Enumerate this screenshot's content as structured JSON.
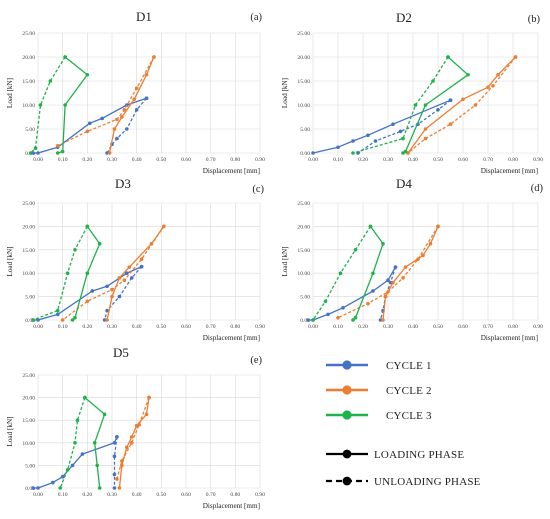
{
  "chart_data": [
    {
      "type": "line",
      "title": "D1",
      "panel_letter": "(a)",
      "xlabel": "Displacement [mm]",
      "ylabel": "Load [kN]",
      "xlim": [
        0,
        0.9
      ],
      "ylim": [
        0,
        25
      ],
      "xticks": [
        "0.00",
        "0.10",
        "0.20",
        "0.30",
        "0.40",
        "0.50",
        "0.60",
        "0.70",
        "0.80",
        "0.90"
      ],
      "yticks": [
        "0.00",
        "5.00",
        "10.00",
        "15.00",
        "20.00",
        "25.00"
      ],
      "grid": true,
      "series": [
        {
          "cycle": 1,
          "phase": "loading",
          "x": [
            -0.02,
            0.0,
            0.08,
            0.21,
            0.26,
            0.36,
            0.44
          ],
          "y": [
            0.0,
            0.0,
            1.2,
            6.2,
            7.2,
            10.0,
            11.4
          ]
        },
        {
          "cycle": 1,
          "phase": "unloading",
          "x": [
            0.44,
            0.4,
            0.36,
            0.32,
            0.3,
            0.28
          ],
          "y": [
            11.4,
            9.0,
            5.0,
            3.0,
            1.8,
            0.0
          ]
        },
        {
          "cycle": 2,
          "phase": "loading",
          "x": [
            0.29,
            0.31,
            0.34,
            0.39,
            0.44,
            0.47
          ],
          "y": [
            0.0,
            5.0,
            7.5,
            11.2,
            16.3,
            20.0
          ]
        },
        {
          "cycle": 2,
          "phase": "unloading",
          "x": [
            0.47,
            0.4,
            0.35,
            0.32,
            0.2,
            0.08
          ],
          "y": [
            20.0,
            13.5,
            9.0,
            7.0,
            4.5,
            1.5
          ]
        },
        {
          "cycle": 3,
          "phase": "loading",
          "x": [
            0.08,
            0.1,
            0.11,
            0.2,
            0.11
          ],
          "y": [
            0.0,
            0.3,
            10.0,
            16.3,
            20.0
          ]
        },
        {
          "cycle": 3,
          "phase": "unloading",
          "x": [
            0.11,
            0.05,
            0.01,
            -0.01,
            -0.03
          ],
          "y": [
            20.0,
            15.0,
            10.0,
            1.0,
            0.0
          ]
        }
      ]
    },
    {
      "type": "line",
      "title": "D2",
      "panel_letter": "(b)",
      "xlabel": "Displacement [mm]",
      "ylabel": "Load [kN]",
      "xlim": [
        0,
        0.9
      ],
      "ylim": [
        0,
        25
      ],
      "xticks": [
        "0.00",
        "0.10",
        "0.20",
        "0.30",
        "0.40",
        "0.50",
        "0.60",
        "0.70",
        "0.80",
        "0.90"
      ],
      "yticks": [
        "0.00",
        "5.00",
        "10.00",
        "15.00",
        "20.00",
        "25.00"
      ],
      "grid": true,
      "series": [
        {
          "cycle": 1,
          "phase": "loading",
          "x": [
            0.0,
            0.1,
            0.16,
            0.22,
            0.32,
            0.55
          ],
          "y": [
            0.0,
            1.2,
            2.5,
            3.7,
            6.0,
            11.0
          ]
        },
        {
          "cycle": 1,
          "phase": "unloading",
          "x": [
            0.55,
            0.5,
            0.42,
            0.35,
            0.25,
            0.18
          ],
          "y": [
            11.0,
            9.0,
            6.0,
            4.5,
            2.5,
            0.0
          ]
        },
        {
          "cycle": 2,
          "phase": "loading",
          "x": [
            0.38,
            0.45,
            0.6,
            0.7,
            0.74,
            0.81
          ],
          "y": [
            0.0,
            5.0,
            11.2,
            13.7,
            16.3,
            20.0
          ]
        },
        {
          "cycle": 2,
          "phase": "unloading",
          "x": [
            0.81,
            0.72,
            0.65,
            0.55,
            0.45,
            0.38
          ],
          "y": [
            20.0,
            14.0,
            10.0,
            6.0,
            3.0,
            0.0
          ]
        },
        {
          "cycle": 3,
          "phase": "loading",
          "x": [
            0.36,
            0.37,
            0.45,
            0.62,
            0.54
          ],
          "y": [
            0.0,
            0.3,
            10.0,
            16.3,
            20.0
          ]
        },
        {
          "cycle": 3,
          "phase": "unloading",
          "x": [
            0.54,
            0.48,
            0.41,
            0.36,
            0.16
          ],
          "y": [
            20.0,
            15.0,
            10.0,
            3.0,
            0.0
          ]
        }
      ]
    },
    {
      "type": "line",
      "title": "D3",
      "panel_letter": "(c)",
      "xlabel": "Displacement [mm]",
      "ylabel": "Load [kN]",
      "xlim": [
        0,
        0.9
      ],
      "ylim": [
        0,
        25
      ],
      "xticks": [
        "0.00",
        "0.10",
        "0.20",
        "0.30",
        "0.40",
        "0.50",
        "0.60",
        "0.70",
        "0.80",
        "0.90"
      ],
      "yticks": [
        "0.00",
        "5.00",
        "10.00",
        "15.00",
        "20.00",
        "25.00"
      ],
      "grid": true,
      "series": [
        {
          "cycle": 1,
          "phase": "loading",
          "x": [
            -0.02,
            0.0,
            0.08,
            0.22,
            0.28,
            0.36,
            0.42
          ],
          "y": [
            0.0,
            0.0,
            1.2,
            6.2,
            7.2,
            10.0,
            11.4
          ]
        },
        {
          "cycle": 1,
          "phase": "unloading",
          "x": [
            0.42,
            0.38,
            0.33,
            0.28,
            0.27
          ],
          "y": [
            11.4,
            9.0,
            5.0,
            2.0,
            0.0
          ]
        },
        {
          "cycle": 2,
          "phase": "loading",
          "x": [
            0.28,
            0.3,
            0.33,
            0.37,
            0.46,
            0.51
          ],
          "y": [
            0.0,
            5.0,
            9.0,
            11.3,
            16.3,
            20.0
          ]
        },
        {
          "cycle": 2,
          "phase": "unloading",
          "x": [
            0.51,
            0.42,
            0.35,
            0.3,
            0.2,
            0.1
          ],
          "y": [
            20.0,
            13.0,
            8.5,
            6.5,
            4.0,
            0.0
          ]
        },
        {
          "cycle": 3,
          "phase": "loading",
          "x": [
            0.14,
            0.15,
            0.2,
            0.25,
            0.2
          ],
          "y": [
            0.0,
            0.5,
            10.0,
            16.3,
            20.0
          ]
        },
        {
          "cycle": 3,
          "phase": "unloading",
          "x": [
            0.2,
            0.15,
            0.12,
            0.08,
            -0.02
          ],
          "y": [
            20.0,
            15.0,
            10.0,
            2.0,
            0.0
          ]
        }
      ]
    },
    {
      "type": "line",
      "title": "D4",
      "panel_letter": "(d)",
      "xlabel": "Displacement [mm]",
      "ylabel": "Load [kN]",
      "xlim": [
        0,
        0.9
      ],
      "ylim": [
        0,
        25
      ],
      "xticks": [
        "0.00",
        "0.10",
        "0.20",
        "0.30",
        "0.40",
        "0.50",
        "0.60",
        "0.70",
        "0.80",
        "0.90"
      ],
      "yticks": [
        "0.00",
        "5.00",
        "10.00",
        "15.00",
        "20.00",
        "25.00"
      ],
      "grid": true,
      "series": [
        {
          "cycle": 1,
          "phase": "loading",
          "x": [
            -0.02,
            0.0,
            0.06,
            0.12,
            0.24,
            0.3,
            0.33
          ],
          "y": [
            0.0,
            0.0,
            1.2,
            2.6,
            6.2,
            8.5,
            11.3
          ]
        },
        {
          "cycle": 1,
          "phase": "unloading",
          "x": [
            0.33,
            0.31,
            0.29,
            0.28,
            0.27
          ],
          "y": [
            11.3,
            8.0,
            5.0,
            2.0,
            0.0
          ]
        },
        {
          "cycle": 2,
          "phase": "loading",
          "x": [
            0.28,
            0.29,
            0.32,
            0.37,
            0.44,
            0.47,
            0.5
          ],
          "y": [
            0.0,
            5.0,
            8.0,
            11.3,
            13.8,
            16.3,
            20.0
          ]
        },
        {
          "cycle": 2,
          "phase": "unloading",
          "x": [
            0.5,
            0.42,
            0.36,
            0.3,
            0.22,
            0.1
          ],
          "y": [
            20.0,
            13.0,
            9.0,
            6.0,
            3.5,
            0.5
          ]
        },
        {
          "cycle": 3,
          "phase": "loading",
          "x": [
            0.16,
            0.17,
            0.24,
            0.28,
            0.23
          ],
          "y": [
            0.0,
            0.5,
            10.0,
            16.3,
            20.0
          ]
        },
        {
          "cycle": 3,
          "phase": "unloading",
          "x": [
            0.23,
            0.17,
            0.11,
            0.05,
            0.0
          ],
          "y": [
            20.0,
            15.0,
            10.0,
            4.0,
            0.0
          ]
        }
      ]
    },
    {
      "type": "line",
      "title": "D5",
      "panel_letter": "(e)",
      "xlabel": "Displacement [mm]",
      "ylabel": "Load [kN]",
      "xlim": [
        0,
        0.9
      ],
      "ylim": [
        0,
        25
      ],
      "xticks": [
        "0.00",
        "0.10",
        "0.20",
        "0.30",
        "0.40",
        "0.50",
        "0.60",
        "0.70",
        "0.80",
        "0.90"
      ],
      "yticks": [
        "0.00",
        "5.00",
        "10.00",
        "15.00",
        "20.00",
        "25.00"
      ],
      "grid": true,
      "series": [
        {
          "cycle": 1,
          "phase": "loading",
          "x": [
            -0.02,
            0.0,
            0.06,
            0.1,
            0.14,
            0.18,
            0.31,
            0.32
          ],
          "y": [
            0.0,
            0.0,
            1.2,
            2.5,
            5.0,
            7.5,
            10.0,
            11.3
          ]
        },
        {
          "cycle": 1,
          "phase": "unloading",
          "x": [
            0.32,
            0.31,
            0.31,
            0.31
          ],
          "y": [
            11.3,
            7.0,
            3.0,
            0.0
          ]
        },
        {
          "cycle": 2,
          "phase": "loading",
          "x": [
            0.33,
            0.34,
            0.36,
            0.38,
            0.4,
            0.44,
            0.45
          ],
          "y": [
            0.0,
            5.0,
            9.0,
            11.3,
            13.8,
            16.3,
            20.0
          ]
        },
        {
          "cycle": 2,
          "phase": "unloading",
          "x": [
            0.45,
            0.41,
            0.38,
            0.34,
            0.32
          ],
          "y": [
            20.0,
            14.0,
            10.0,
            6.0,
            2.0
          ]
        },
        {
          "cycle": 3,
          "phase": "loading",
          "x": [
            0.25,
            0.24,
            0.23,
            0.27,
            0.19
          ],
          "y": [
            0.0,
            5.0,
            10.0,
            16.3,
            20.0
          ]
        },
        {
          "cycle": 3,
          "phase": "unloading",
          "x": [
            0.19,
            0.16,
            0.15,
            0.12,
            0.09
          ],
          "y": [
            20.0,
            15.0,
            10.0,
            4.0,
            0.0
          ]
        }
      ]
    }
  ],
  "colors": {
    "cycle1": "#4472C4",
    "cycle2": "#ED7D31",
    "cycle3": "#1FB24A",
    "grid": "#D9D9D9",
    "text": "#222222"
  },
  "legend": {
    "cycles": [
      {
        "label": "CYCLE 1",
        "color": "#4472C4"
      },
      {
        "label": "CYCLE 2",
        "color": "#ED7D31"
      },
      {
        "label": "CYCLE 3",
        "color": "#1FB24A"
      }
    ],
    "phases": [
      {
        "label": "LOADING PHASE",
        "style": "solid"
      },
      {
        "label": "UNLOADING PHASE",
        "style": "dashed"
      }
    ]
  }
}
